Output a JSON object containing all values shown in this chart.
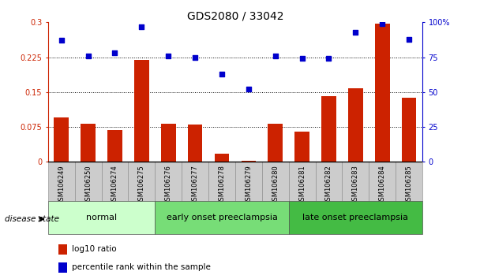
{
  "title": "GDS2080 / 33042",
  "samples": [
    "GSM106249",
    "GSM106250",
    "GSM106274",
    "GSM106275",
    "GSM106276",
    "GSM106277",
    "GSM106278",
    "GSM106279",
    "GSM106280",
    "GSM106281",
    "GSM106282",
    "GSM106283",
    "GSM106284",
    "GSM106285"
  ],
  "log10_ratio": [
    0.095,
    0.082,
    0.068,
    0.22,
    0.082,
    0.08,
    0.018,
    0.002,
    0.082,
    0.065,
    0.142,
    0.158,
    0.298,
    0.138
  ],
  "percentile_rank": [
    87,
    76,
    78,
    97,
    76,
    75,
    63,
    52,
    76,
    74,
    74,
    93,
    99,
    88
  ],
  "ylim_left": [
    0,
    0.3
  ],
  "ylim_right": [
    0,
    100
  ],
  "yticks_left": [
    0,
    0.075,
    0.15,
    0.225,
    0.3
  ],
  "yticks_right": [
    0,
    25,
    50,
    75,
    100
  ],
  "ytick_labels_left": [
    "0",
    "0.075",
    "0.15",
    "0.225",
    "0.3"
  ],
  "ytick_labels_right": [
    "0",
    "25",
    "50",
    "75",
    "100%"
  ],
  "groups": [
    {
      "label": "normal",
      "start": 0,
      "end": 4,
      "color": "#ccffcc"
    },
    {
      "label": "early onset preeclampsia",
      "start": 4,
      "end": 9,
      "color": "#77dd77"
    },
    {
      "label": "late onset preeclampsia",
      "start": 9,
      "end": 14,
      "color": "#44bb44"
    }
  ],
  "bar_color": "#cc2200",
  "dot_color": "#0000cc",
  "legend_items": [
    {
      "label": "log10 ratio",
      "color": "#cc2200"
    },
    {
      "label": "percentile rank within the sample",
      "color": "#0000cc"
    }
  ],
  "disease_state_label": "disease state",
  "title_fontsize": 10,
  "tick_fontsize": 7,
  "group_fontsize": 8,
  "legend_fontsize": 7.5
}
